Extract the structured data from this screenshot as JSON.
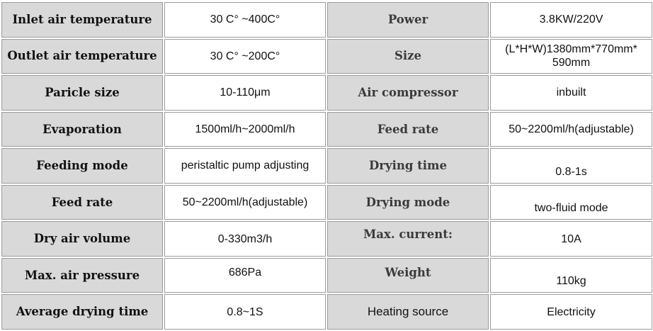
{
  "table": {
    "rows": [
      {
        "left_label": "Inlet air temperature",
        "left_value": "30 C° ~400C°",
        "right_label": "Power",
        "right_value": "3.8KW/220V"
      },
      {
        "left_label": "Outlet air temperature",
        "left_value": "30 C° ~200C°",
        "right_label": "Size",
        "right_value": "(L*H*W)1380mm*770mm* 590mm"
      },
      {
        "left_label": "Paricle size",
        "left_value": "10-110μm",
        "right_label": "Air compressor",
        "right_value": "inbuilt"
      },
      {
        "left_label": "Evaporation",
        "left_value": "1500ml/h~2000ml/h",
        "right_label": "Feed rate",
        "right_value": "50~2200ml/h(adjustable)"
      },
      {
        "left_label": "Feeding mode",
        "left_value": "peristaltic pump adjusting",
        "right_label": "Drying time",
        "right_value": "0.8-1s"
      },
      {
        "left_label": "Feed rate",
        "left_value": "50~2200ml/h(adjustable)",
        "right_label": "Drying mode",
        "right_value": "two-fluid mode"
      },
      {
        "left_label": "Dry air volume",
        "left_value": "0-330m3/h",
        "right_label": "Max. current:",
        "right_value": "10A"
      },
      {
        "left_label": "Max. air pressure",
        "left_value": "686Pa",
        "right_label": "Weight",
        "right_value": "110kg"
      },
      {
        "left_label": "Average drying time",
        "left_value": "0.8~1S",
        "right_label": "Heating source",
        "right_value": "Electricity"
      }
    ]
  }
}
